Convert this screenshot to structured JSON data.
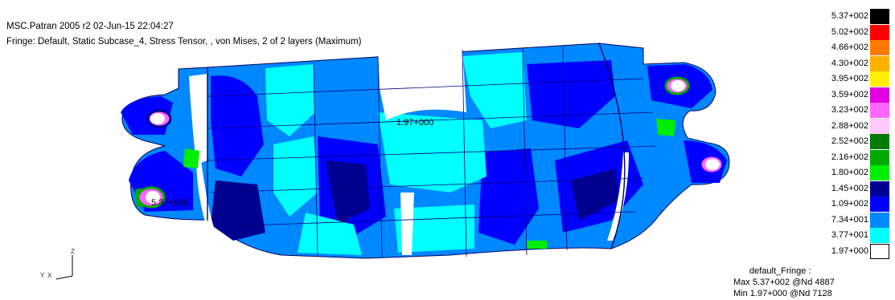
{
  "header": {
    "line1": "MSC.Patran 2005 r2 02-Jun-15 22:04:27",
    "line2": "Fringe: Default, Static Subcase_4, Stress Tensor, , von Mises, 2 of 2 layers (Maximum)"
  },
  "plot": {
    "min_label": "1.97+000",
    "max_label": "5.37+002",
    "triad": {
      "z": "Z",
      "y": "Y",
      "x": "X"
    }
  },
  "legend": {
    "levels": [
      {
        "value": "5.37+002",
        "color": "#000000"
      },
      {
        "value": "5.02+002",
        "color": "#ff0000"
      },
      {
        "value": "4.66+002",
        "color": "#ff7a00"
      },
      {
        "value": "4.30+002",
        "color": "#ffb000"
      },
      {
        "value": "3.95+002",
        "color": "#ffee00"
      },
      {
        "value": "3.59+002",
        "color": "#e000e0"
      },
      {
        "value": "3.23+002",
        "color": "#ff66ff"
      },
      {
        "value": "2.88+002",
        "color": "#ffc8ff"
      },
      {
        "value": "2.52+002",
        "color": "#007a00"
      },
      {
        "value": "2.16+002",
        "color": "#00aa00"
      },
      {
        "value": "1.80+002",
        "color": "#00ee00"
      },
      {
        "value": "1.45+002",
        "color": "#000090"
      },
      {
        "value": "1.09+002",
        "color": "#0000ff"
      },
      {
        "value": "7.34+001",
        "color": "#0088ff"
      },
      {
        "value": "3.77+001",
        "color": "#00ffff"
      },
      {
        "value": "1.97+000",
        "color": "#ffffff"
      }
    ]
  },
  "footer": {
    "title": "default_Fringe :",
    "max": "Max 5.37+002 @Nd 4887",
    "min": "Min 1.97+000 @Nd 7128"
  }
}
